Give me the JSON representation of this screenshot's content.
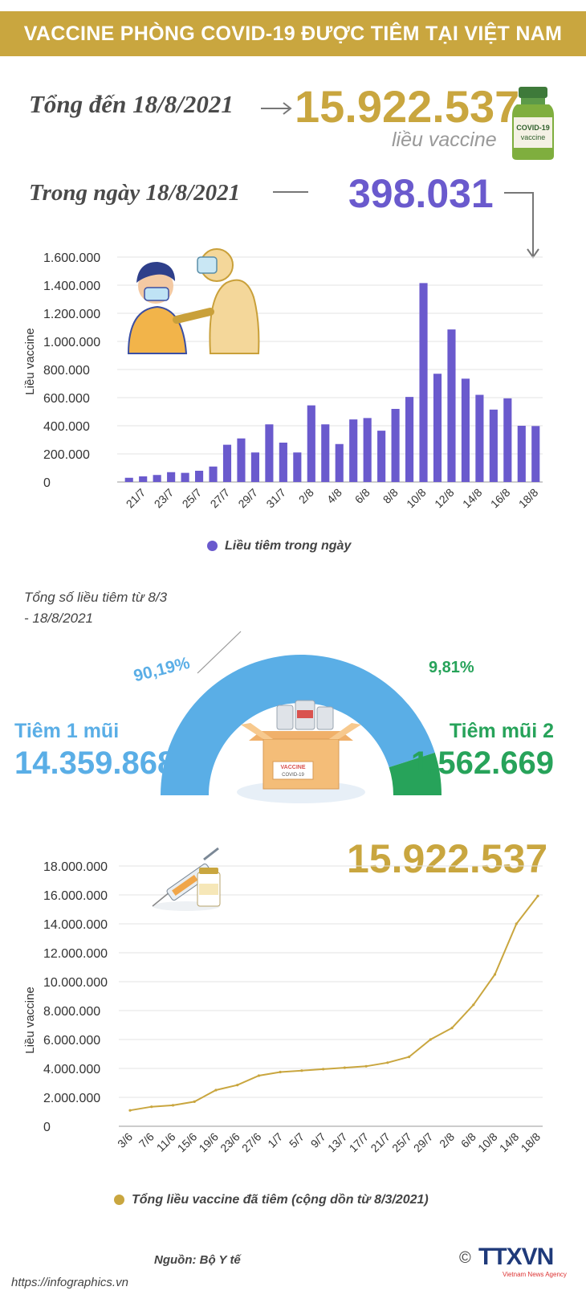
{
  "header": {
    "title": "VACCINE PHÒNG COVID-19 ĐƯỢC TIÊM TẠI VIỆT NAM"
  },
  "summary": {
    "total_label": "Tổng đến 18/8/2021",
    "total_value": "15.922.537",
    "total_unit": "liều vaccine",
    "day_label": "Trong ngày 18/8/2021",
    "day_value": "398.031"
  },
  "vial": {
    "text1": "COVID-19",
    "text2": "vaccine"
  },
  "box": {
    "label1": "VACCINE",
    "label2": "COVID-19"
  },
  "colors": {
    "gold": "#c9a63f",
    "purple": "#6a5acd",
    "blue": "#5aaee6",
    "green": "#27a35a"
  },
  "chart_data": [
    {
      "type": "bar",
      "ylabel": "Liều vaccine",
      "ylim": [
        0,
        1600000
      ],
      "yticks": [
        "0",
        "200.000",
        "400.000",
        "600.000",
        "800.000",
        "1.000.000",
        "1.200.000",
        "1.400.000",
        "1.600.000"
      ],
      "ytick_values": [
        0,
        200000,
        400000,
        600000,
        800000,
        1000000,
        1200000,
        1400000,
        1600000
      ],
      "categories": [
        "20/7",
        "21/7",
        "22/7",
        "23/7",
        "24/7",
        "25/7",
        "26/7",
        "27/7",
        "28/7",
        "29/7",
        "30/7",
        "31/7",
        "1/8",
        "2/8",
        "3/8",
        "4/8",
        "5/8",
        "6/8",
        "7/8",
        "8/8",
        "9/8",
        "10/8",
        "11/8",
        "12/8",
        "13/8",
        "14/8",
        "15/8",
        "16/8",
        "17/8",
        "18/8"
      ],
      "xtick_labels": [
        "21/7",
        "23/7",
        "25/7",
        "27/7",
        "29/7",
        "31/7",
        "2/8",
        "4/8",
        "6/8",
        "8/8",
        "10/8",
        "12/8",
        "14/8",
        "16/8",
        "18/8"
      ],
      "xtick_categories": [
        "21/7",
        "23/7",
        "25/7",
        "27/7",
        "29/7",
        "31/7",
        "2/8",
        "4/8",
        "6/8",
        "8/8",
        "10/8",
        "12/8",
        "14/8",
        "16/8",
        "18/8"
      ],
      "series": [
        {
          "name": "Liều tiêm trong ngày",
          "values": [
            30000,
            40000,
            50000,
            70000,
            65000,
            80000,
            110000,
            265000,
            310000,
            210000,
            410000,
            280000,
            210000,
            545000,
            410000,
            270000,
            445000,
            455000,
            365000,
            520000,
            605000,
            1415000,
            770000,
            1085000,
            735000,
            620000,
            515000,
            595000,
            400000,
            398031
          ]
        }
      ],
      "legend": "Liều tiêm trong ngày",
      "grid": true
    },
    {
      "type": "pie",
      "title": "Tổng số liều tiêm từ 8/3 - 18/8/2021",
      "slices": [
        {
          "name": "Tiêm 1 mũi",
          "value": 14359868,
          "value_label": "14.359.868",
          "percent": 90.19,
          "percent_label": "90,19%"
        },
        {
          "name": "Tiêm mũi 2",
          "value": 1562669,
          "value_label": "1.562.669",
          "percent": 9.81,
          "percent_label": "9,81%"
        }
      ]
    },
    {
      "type": "line",
      "ylabel": "Liều vaccine",
      "ylim": [
        0,
        18000000
      ],
      "yticks": [
        "0",
        "2.000.000",
        "4.000.000",
        "6.000.000",
        "8.000.000",
        "10.000.000",
        "12.000.000",
        "14.000.000",
        "16.000.000",
        "18.000.000"
      ],
      "ytick_values": [
        0,
        2000000,
        4000000,
        6000000,
        8000000,
        10000000,
        12000000,
        14000000,
        16000000,
        18000000
      ],
      "x": [
        "3/6",
        "7/6",
        "11/6",
        "15/6",
        "19/6",
        "23/6",
        "27/6",
        "1/7",
        "5/7",
        "9/7",
        "13/7",
        "17/7",
        "21/7",
        "25/7",
        "29/7",
        "2/8",
        "6/8",
        "10/8",
        "14/8",
        "18/8"
      ],
      "series": [
        {
          "name": "Tổng liều vaccine đã tiêm (cộng dồn từ 8/3/2021)",
          "values": [
            1100000,
            1350000,
            1450000,
            1700000,
            2500000,
            2850000,
            3500000,
            3750000,
            3850000,
            3950000,
            4050000,
            4150000,
            4400000,
            4800000,
            6000000,
            6800000,
            8400000,
            10500000,
            14000000,
            15922537
          ]
        }
      ],
      "annotation": "15.922.537",
      "legend": "Tổng liều vaccine đã tiêm (cộng dồn từ 8/3/2021)",
      "grid": true
    }
  ],
  "footer": {
    "source": "Nguồn: Bộ Y tế",
    "url": "https://infographics.vn",
    "logo": "TTXVN",
    "logo_sub": "Vietnam News Agency",
    "copyright": "©"
  }
}
